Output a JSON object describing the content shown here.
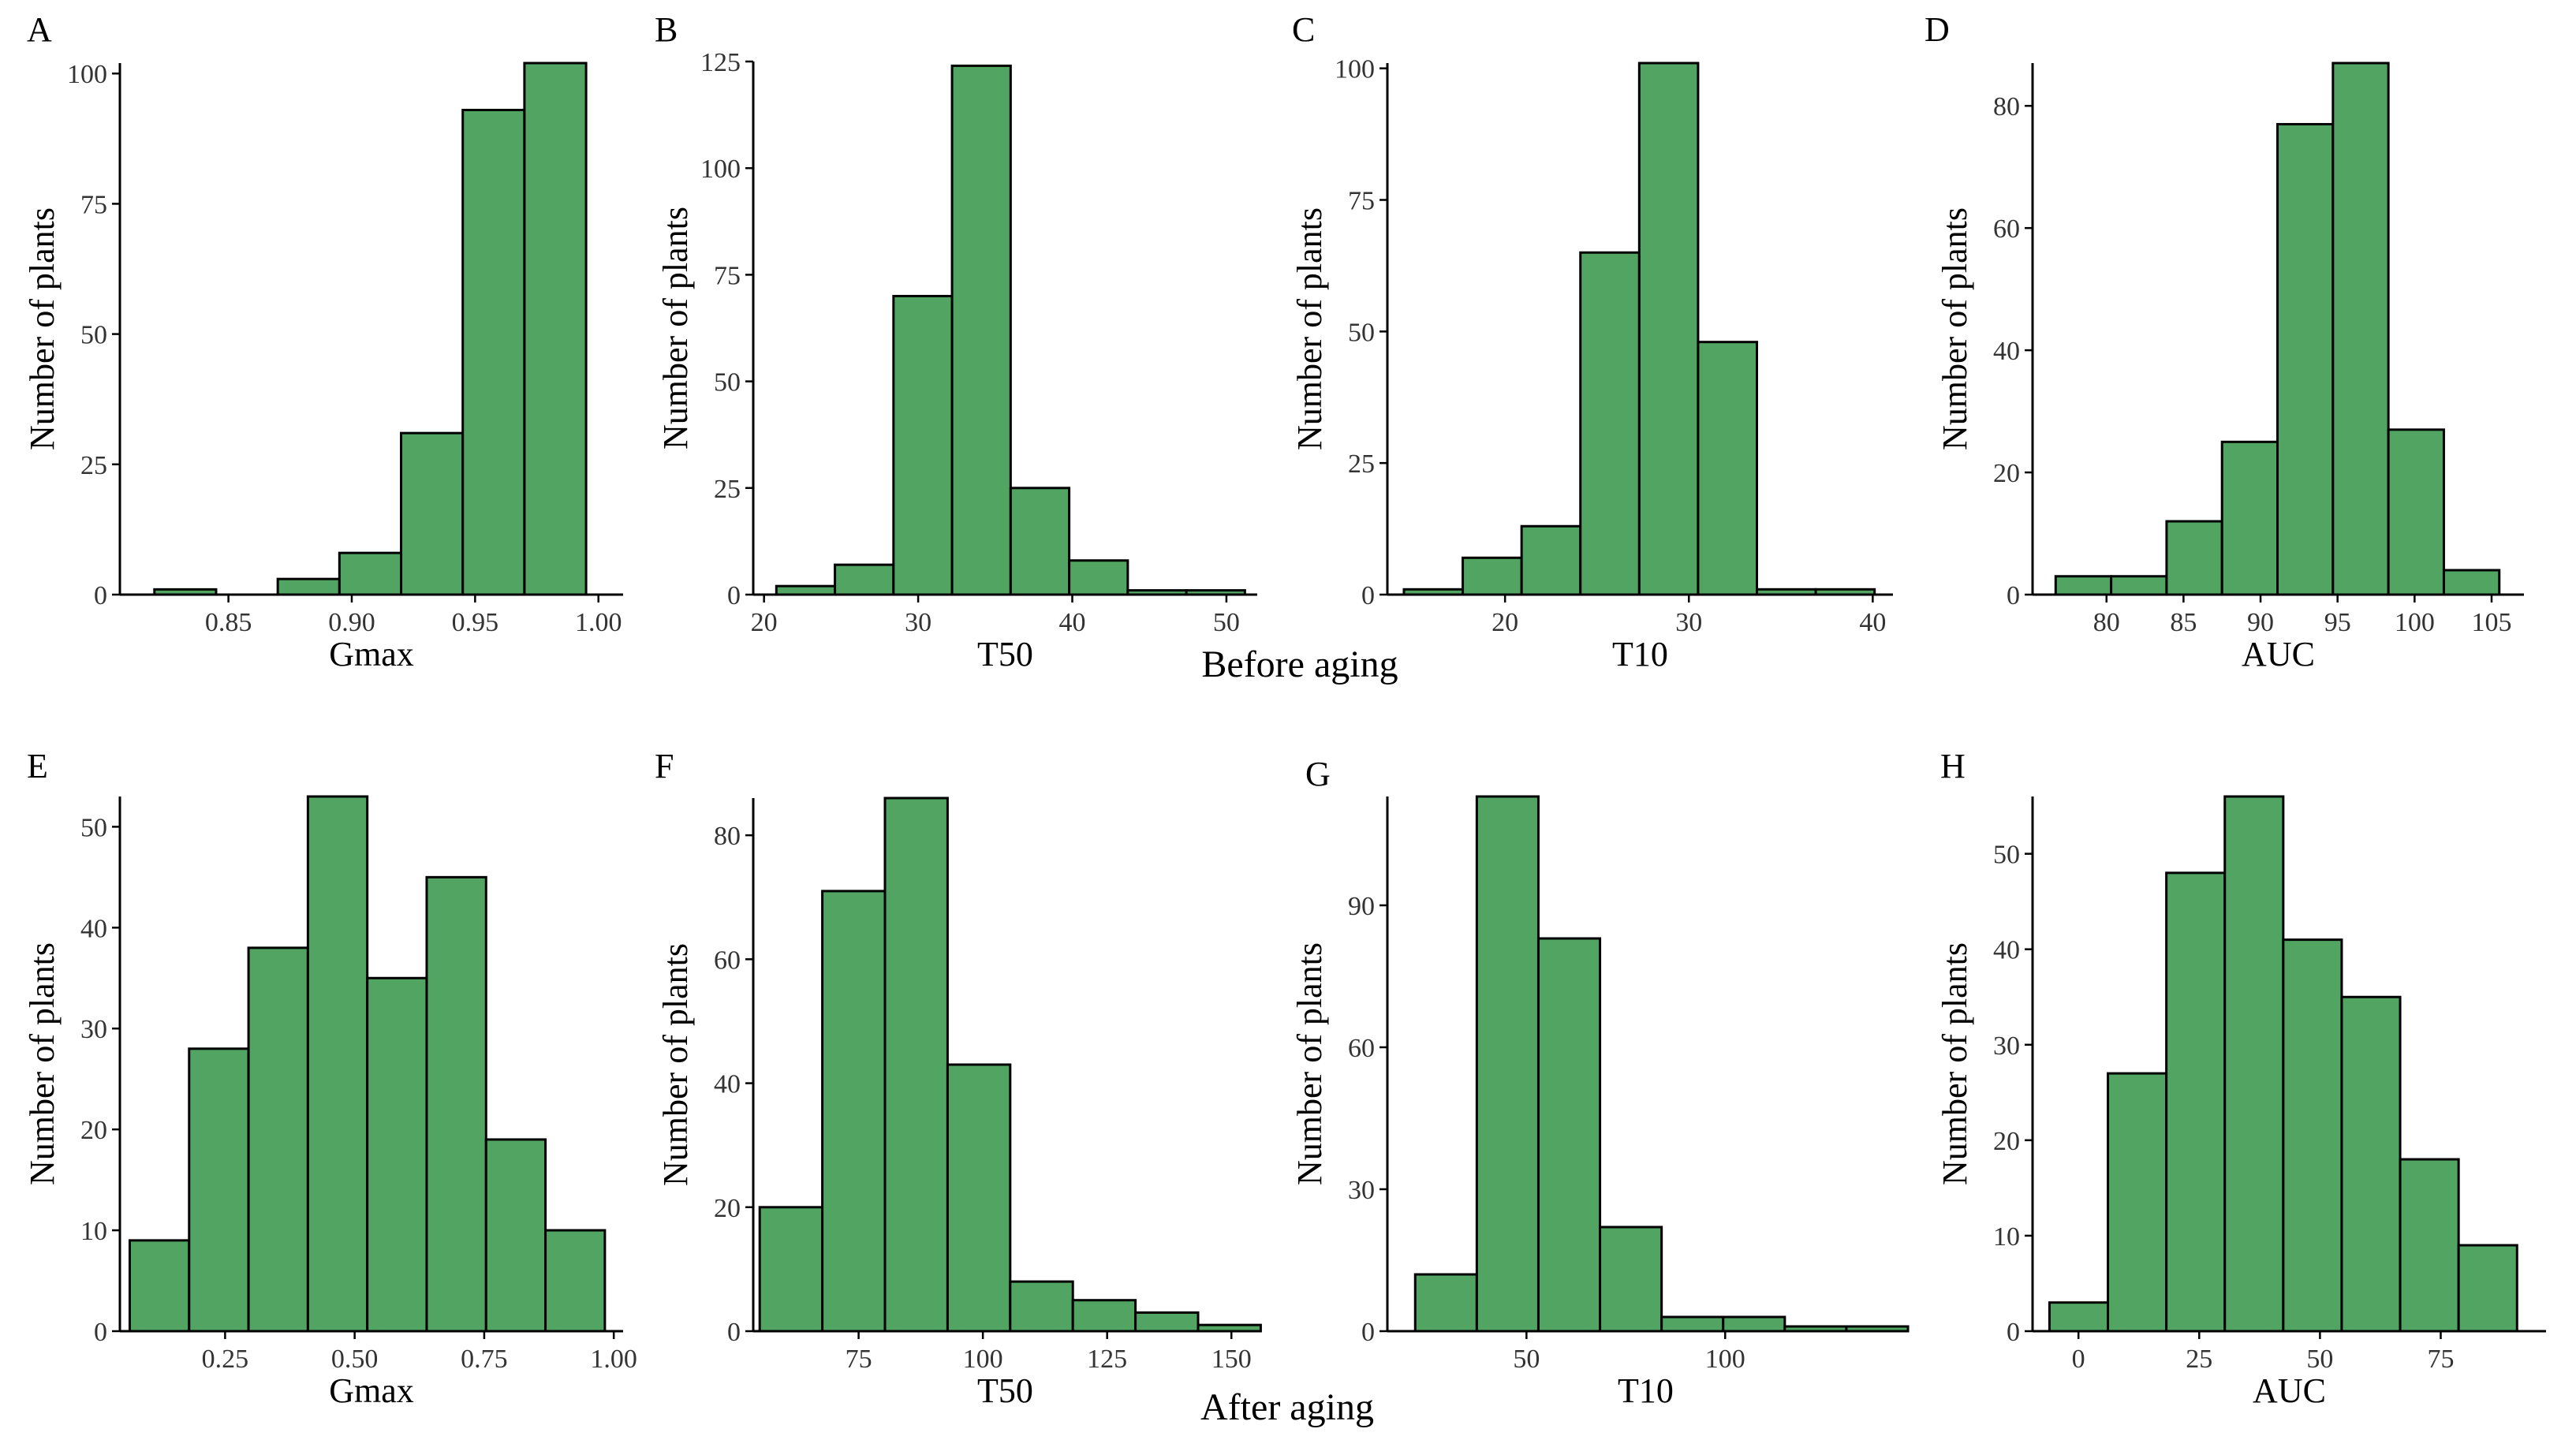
{
  "figure": {
    "captions": [
      {
        "id": "before",
        "text": "Before aging"
      },
      {
        "id": "after",
        "text": "After aging"
      }
    ]
  },
  "colors": {
    "bar_fill": "#52a462",
    "bar_stroke": "#000000",
    "axis": "#000000",
    "tick_text": "#333333"
  },
  "chart_data": [
    {
      "panel": "A",
      "type": "bar",
      "group": "Before aging",
      "xlabel": "Gmax",
      "ylabel": "Number of plants",
      "xlim": [
        0.806,
        1.01
      ],
      "ylim": [
        0,
        102
      ],
      "xticks": [
        0.85,
        0.9,
        0.95,
        1.0
      ],
      "xtick_labels": [
        "0.85",
        "0.90",
        "0.95",
        "1.00"
      ],
      "yticks": [
        0,
        25,
        50,
        75,
        100
      ],
      "ytick_labels": [
        "0",
        "25",
        "50",
        "75",
        "100"
      ],
      "bin_edges": [
        0.82,
        0.845,
        0.87,
        0.895,
        0.92,
        0.945,
        0.97,
        0.995
      ],
      "counts": [
        1,
        0,
        3,
        8,
        31,
        93,
        102
      ]
    },
    {
      "panel": "B",
      "type": "bar",
      "group": "Before aging",
      "xlabel": "T50",
      "ylabel": "Number of plants",
      "xlim": [
        19.3,
        52.0
      ],
      "ylim": [
        0,
        125
      ],
      "xticks": [
        20,
        30,
        40,
        50
      ],
      "xtick_labels": [
        "20",
        "30",
        "40",
        "50"
      ],
      "yticks": [
        0,
        25,
        50,
        75,
        100,
        125
      ],
      "ytick_labels": [
        "0",
        "25",
        "50",
        "75",
        "100",
        "125"
      ],
      "bin_edges": [
        20.8,
        24.6,
        28.4,
        32.2,
        36.0,
        39.8,
        43.6,
        47.4,
        51.2
      ],
      "counts": [
        2,
        7,
        70,
        124,
        25,
        8,
        1,
        1
      ]
    },
    {
      "panel": "C",
      "type": "bar",
      "group": "Before aging",
      "xlabel": "T10",
      "ylabel": "Number of plants",
      "xlim": [
        13.6,
        41.1
      ],
      "ylim": [
        0,
        101
      ],
      "xticks": [
        20,
        30,
        40
      ],
      "xtick_labels": [
        "20",
        "30",
        "40"
      ],
      "yticks": [
        0,
        25,
        50,
        75,
        100
      ],
      "ytick_labels": [
        "0",
        "25",
        "50",
        "75",
        "100"
      ],
      "bin_edges": [
        14.5,
        17.7,
        20.9,
        24.1,
        27.3,
        30.5,
        33.7,
        36.9,
        40.1
      ],
      "counts": [
        1,
        7,
        13,
        65,
        101,
        48,
        1,
        1
      ]
    },
    {
      "panel": "D",
      "type": "bar",
      "group": "Before aging",
      "xlabel": "AUC",
      "ylabel": "Number of plants",
      "xlim": [
        75.2,
        107.1
      ],
      "ylim": [
        0,
        87
      ],
      "xticks": [
        80,
        85,
        90,
        95,
        100,
        105
      ],
      "xtick_labels": [
        "80",
        "85",
        "90",
        "95",
        "100",
        "105"
      ],
      "yticks": [
        0,
        20,
        40,
        60,
        80
      ],
      "ytick_labels": [
        "0",
        "20",
        "40",
        "60",
        "80"
      ],
      "bin_edges": [
        76.7,
        80.3,
        83.9,
        87.5,
        91.1,
        94.7,
        98.3,
        101.9,
        105.5
      ],
      "counts": [
        3,
        3,
        12,
        25,
        77,
        87,
        27,
        4
      ]
    },
    {
      "panel": "E",
      "type": "bar",
      "group": "After aging",
      "xlabel": "Gmax",
      "ylabel": "Number of plants",
      "xlim": [
        0.047,
        1.018
      ],
      "ylim": [
        0,
        53
      ],
      "xticks": [
        0.25,
        0.5,
        0.75,
        1.0
      ],
      "xtick_labels": [
        "0.25",
        "0.50",
        "0.75",
        "1.00"
      ],
      "yticks": [
        0,
        10,
        20,
        30,
        40,
        50
      ],
      "ytick_labels": [
        "0",
        "10",
        "20",
        "30",
        "40",
        "50"
      ],
      "bin_edges": [
        0.066,
        0.1806,
        0.2952,
        0.4098,
        0.5244,
        0.639,
        0.7536,
        0.8682,
        0.9828
      ],
      "counts": [
        9,
        28,
        38,
        53,
        35,
        45,
        19,
        10
      ]
    },
    {
      "panel": "F",
      "type": "bar",
      "group": "After aging",
      "xlabel": "T50",
      "ylabel": "Number of plants",
      "xlim": [
        53.8,
        155.2
      ],
      "ylim": [
        0,
        86
      ],
      "xticks": [
        75,
        100,
        125,
        150
      ],
      "xtick_labels": [
        "75",
        "100",
        "125",
        "150"
      ],
      "yticks": [
        0,
        20,
        40,
        60,
        80
      ],
      "ytick_labels": [
        "0",
        "20",
        "40",
        "60",
        "80"
      ],
      "bin_edges": [
        55.1,
        67.7,
        80.3,
        92.9,
        105.5,
        118.1,
        130.7,
        143.3,
        155.9
      ],
      "counts": [
        20,
        71,
        86,
        43,
        8,
        5,
        3,
        1
      ]
    },
    {
      "panel": "G",
      "type": "bar",
      "group": "After aging",
      "xlabel": "T10",
      "ylabel": "Number of plants",
      "xlim": [
        15.0,
        145.0
      ],
      "ylim": [
        0,
        113
      ],
      "xticks": [
        50,
        100
      ],
      "xtick_labels": [
        "50",
        "100"
      ],
      "yticks": [
        0,
        30,
        60,
        90
      ],
      "ytick_labels": [
        "0",
        "30",
        "60",
        "90"
      ],
      "bin_edges": [
        22.0,
        37.5,
        53.0,
        68.5,
        84.0,
        99.5,
        115.0,
        130.5,
        146.0
      ],
      "counts": [
        12,
        113,
        83,
        22,
        3,
        3,
        1,
        1
      ]
    },
    {
      "panel": "H",
      "type": "bar",
      "group": "After aging",
      "xlabel": "AUC",
      "ylabel": "Number of plants",
      "xlim": [
        -9.5,
        96.8
      ],
      "ylim": [
        0,
        56
      ],
      "xticks": [
        0,
        25,
        50,
        75
      ],
      "xtick_labels": [
        "0",
        "25",
        "50",
        "75"
      ],
      "yticks": [
        0,
        10,
        20,
        30,
        40,
        50
      ],
      "ytick_labels": [
        "0",
        "10",
        "20",
        "30",
        "40",
        "50"
      ],
      "bin_edges": [
        -6.0,
        6.1,
        18.2,
        30.3,
        42.4,
        54.5,
        66.6,
        78.7,
        90.8
      ],
      "counts": [
        3,
        27,
        48,
        56,
        41,
        35,
        18,
        9
      ]
    }
  ]
}
